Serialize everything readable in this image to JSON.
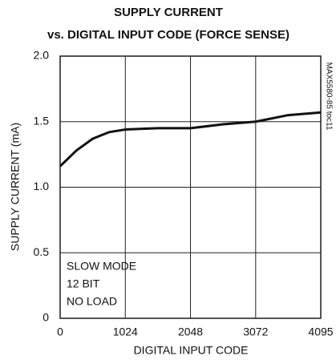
{
  "chart_data": {
    "type": "line",
    "title": [
      "SUPPLY CURRENT",
      "vs. DIGITAL INPUT CODE (FORCE SENSE)"
    ],
    "xlabel": "DIGITAL INPUT CODE",
    "ylabel": "SUPPLY CURRENT (mA)",
    "side_note": "MAX5580-85 toc11",
    "annotations": [
      "SLOW MODE",
      "12 BIT",
      "NO LOAD"
    ],
    "x": [
      0,
      256,
      512,
      768,
      1024,
      1536,
      2048,
      2560,
      3072,
      3584,
      4095
    ],
    "series": [
      {
        "name": "supply current",
        "color": "#111111",
        "values": [
          1.16,
          1.28,
          1.37,
          1.42,
          1.44,
          1.45,
          1.45,
          1.48,
          1.5,
          1.55,
          1.57
        ]
      }
    ],
    "xlim": [
      0,
      4095
    ],
    "xticks": [
      0,
      1024,
      2048,
      3072,
      4095
    ],
    "ylim": [
      0,
      2
    ],
    "yticks": [
      0,
      0.5,
      {
        "value": 1,
        "label": "1.0"
      },
      1.5,
      {
        "value": 2,
        "label": "2.0"
      }
    ],
    "grid": true
  }
}
